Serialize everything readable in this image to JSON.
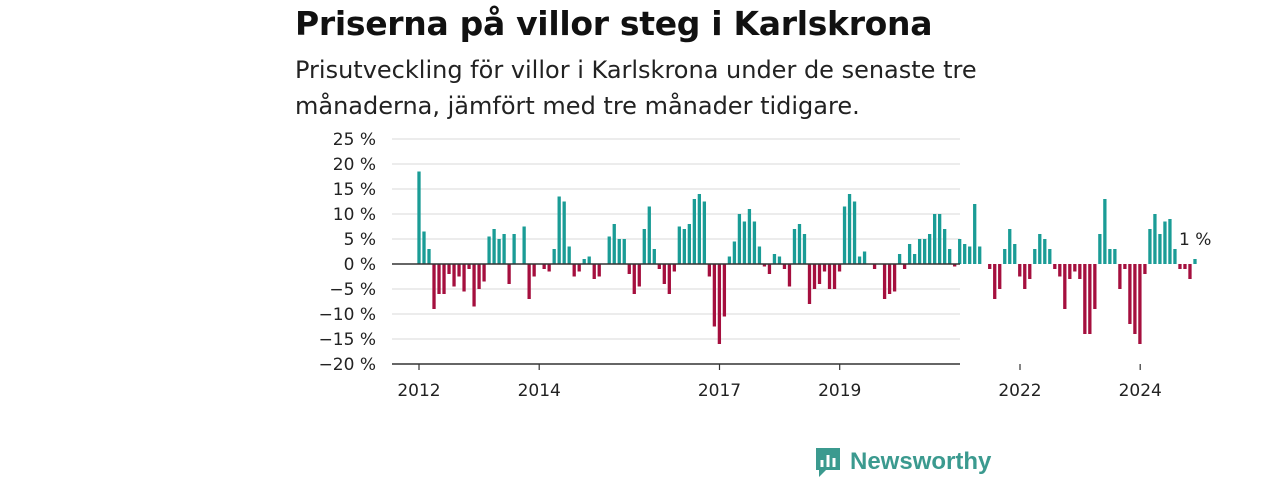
{
  "title": "Priserna på villor steg i Karlskrona",
  "subtitle": "Prisutveckling för villor i Karlskrona under de senaste tre månaderna, jämfört med tre månader tidigare.",
  "brand": {
    "name": "Newsworthy",
    "color": "#3b9a8f",
    "icon": "bar-chart-speech-bubble-icon"
  },
  "colors": {
    "positive": "#1a9c96",
    "negative": "#a50f3e",
    "grid": "#d9d9d9",
    "axis": "#333333"
  },
  "chart_data": {
    "type": "bar",
    "title": "Priserna på villor steg i Karlskrona",
    "xlabel": "",
    "ylabel": "",
    "ylim": [
      -20,
      25
    ],
    "yticks": [
      25,
      20,
      15,
      10,
      5,
      0,
      -5,
      -10,
      -15,
      -20
    ],
    "ytick_labels": [
      "25 %",
      "20 %",
      "15 %",
      "10 %",
      "5 %",
      "0 %",
      "−5 %",
      "−10 %",
      "−15 %",
      "−20 %"
    ],
    "xticks": [
      {
        "label": "2012",
        "x": 2012.0
      },
      {
        "label": "2014",
        "x": 2014.0
      },
      {
        "label": "2017",
        "x": 2017.0
      },
      {
        "label": "2019",
        "x": 2019.0
      },
      {
        "label": "2022",
        "x": 2022.0
      },
      {
        "label": "2024",
        "x": 2024.0
      }
    ],
    "x_start": 2012.0,
    "x_step": 0.0833,
    "grid": true,
    "annotation": {
      "label": "1 %"
    },
    "values": [
      18.5,
      6.5,
      3.0,
      -9.0,
      -6.0,
      -6.0,
      -2.0,
      -4.5,
      -2.5,
      -5.5,
      -1.0,
      -8.5,
      -5.0,
      -3.5,
      5.5,
      7.0,
      5.0,
      6.0,
      -4.0,
      6.0,
      0.0,
      7.5,
      -7.0,
      -2.5,
      0.0,
      -1.0,
      -1.5,
      3.0,
      13.5,
      12.5,
      3.5,
      -2.5,
      -1.5,
      1.0,
      1.5,
      -3.0,
      -2.5,
      0.0,
      5.5,
      8.0,
      5.0,
      5.0,
      -2.0,
      -6.0,
      -4.5,
      7.0,
      11.5,
      3.0,
      -1.0,
      -4.0,
      -6.0,
      -1.5,
      7.5,
      7.0,
      8.0,
      13.0,
      14.0,
      12.5,
      -2.5,
      -12.5,
      -16.0,
      -10.5,
      1.5,
      4.5,
      10.0,
      8.5,
      11.0,
      8.5,
      3.5,
      -0.5,
      -2.0,
      2.0,
      1.5,
      -1.0,
      -4.5,
      7.0,
      8.0,
      6.0,
      -8.0,
      -5.0,
      -4.0,
      -1.5,
      -5.0,
      -5.0,
      -1.5,
      11.5,
      14.0,
      12.5,
      1.5,
      2.5,
      0.0,
      -1.0,
      0.0,
      -7.0,
      -6.0,
      -5.5,
      2.0,
      -1.0,
      4.0,
      2.0,
      5.0,
      5.0,
      6.0,
      10.0,
      10.0,
      7.0,
      3.0,
      -0.5,
      5.0,
      4.0,
      3.5,
      12.0,
      3.5,
      0.0,
      -1.0,
      -7.0,
      -5.0,
      3.0,
      7.0,
      4.0,
      -2.5,
      -5.0,
      -3.0,
      3.0,
      6.0,
      5.0,
      3.0,
      -1.0,
      -2.5,
      -9.0,
      -3.0,
      -1.5,
      -3.0,
      -14.0,
      -14.0,
      -9.0,
      6.0,
      13.0,
      3.0,
      3.0,
      -5.0,
      -1.0,
      -12.0,
      -14.0,
      -16.0,
      -2.0,
      7.0,
      10.0,
      6.0,
      8.5,
      9.0,
      3.0,
      -1.0,
      -1.0,
      -3.0,
      1.0
    ]
  }
}
